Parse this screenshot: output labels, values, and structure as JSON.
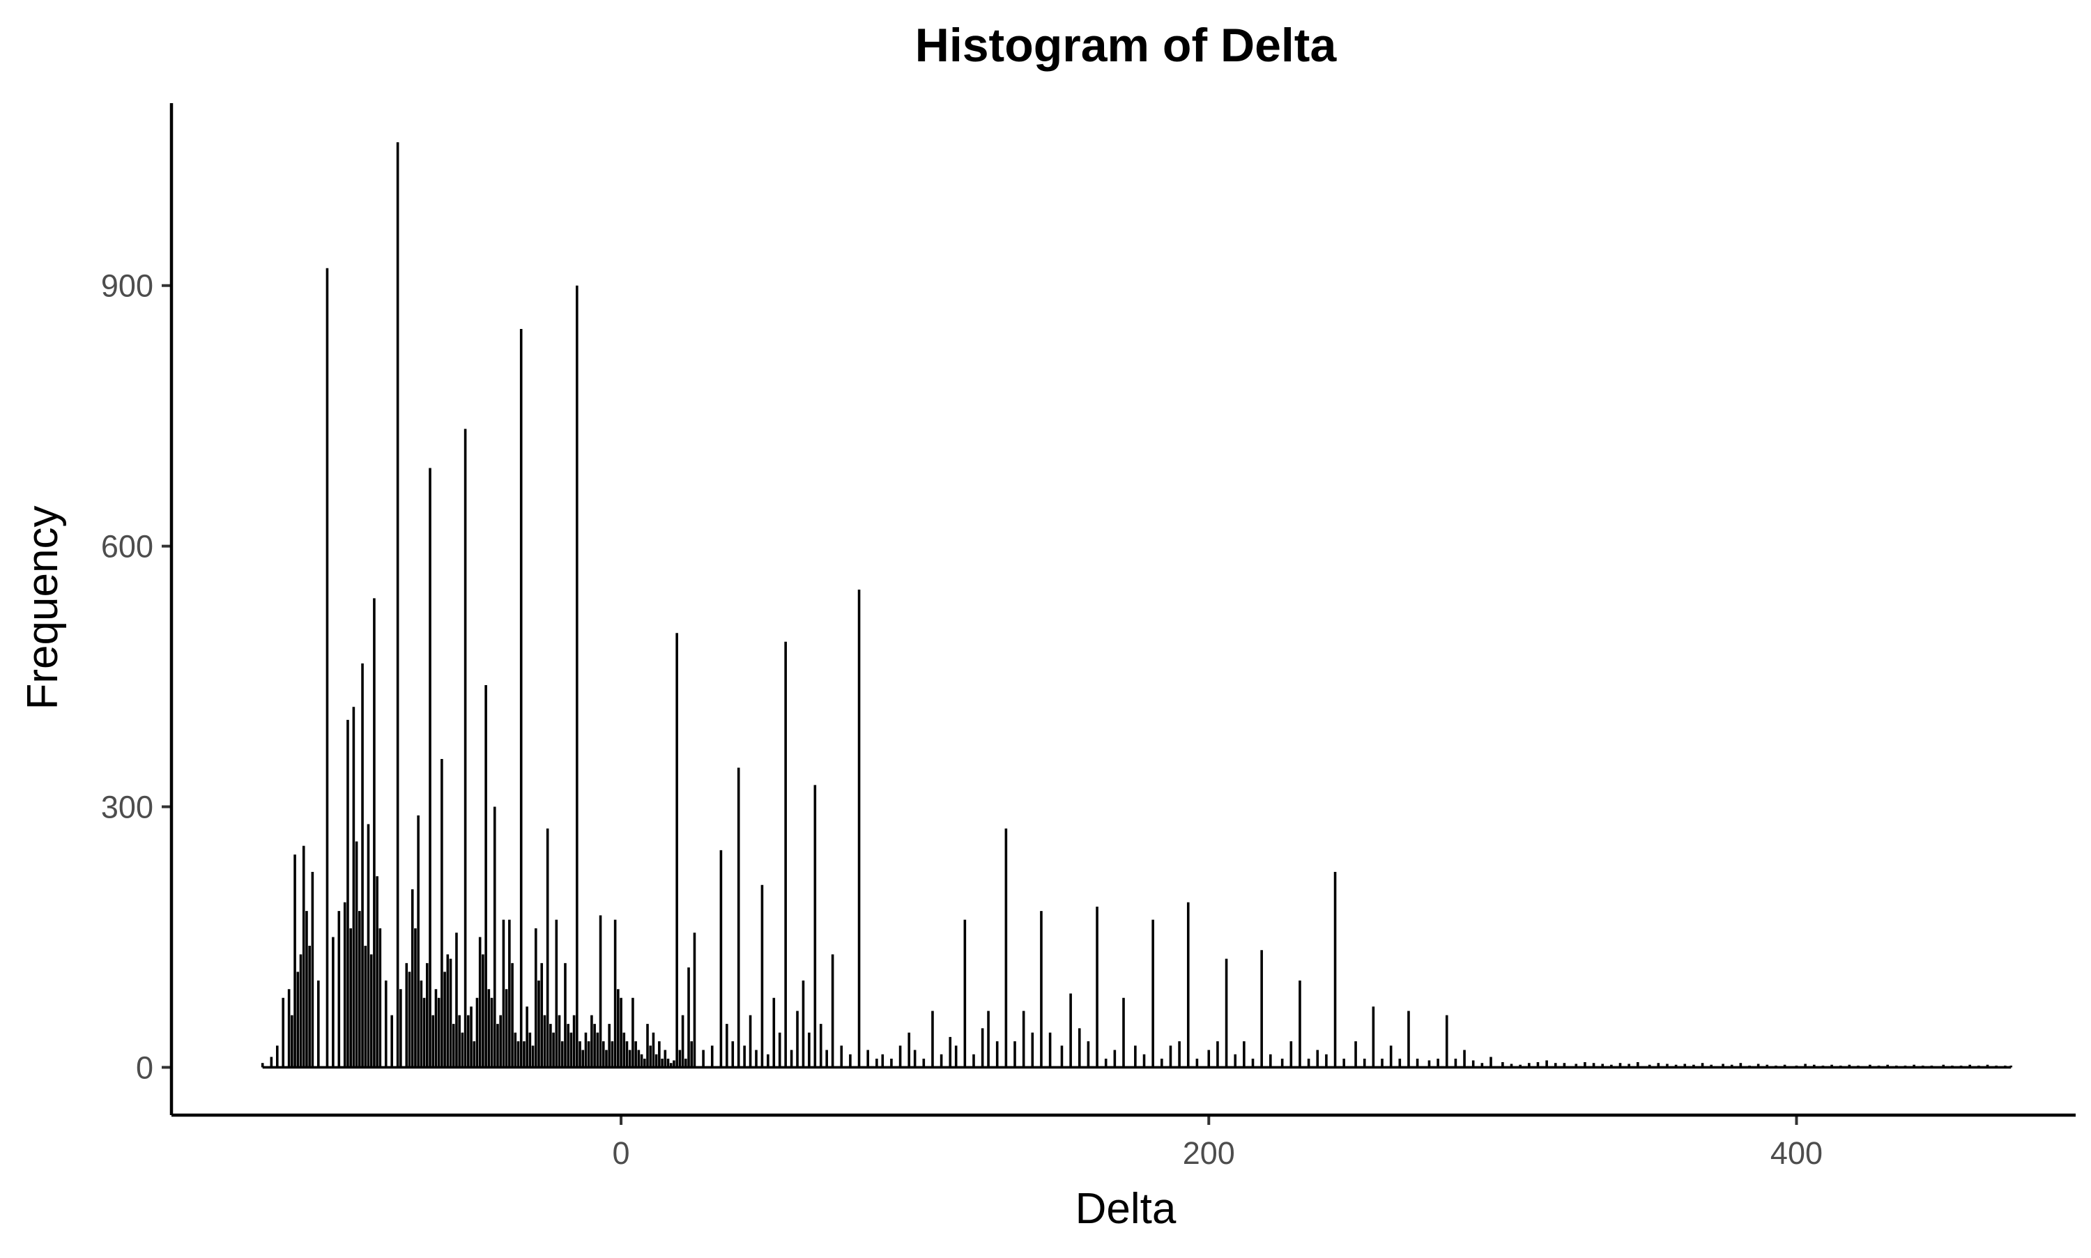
{
  "chart_data": {
    "type": "histogram",
    "title": "Histogram of Delta",
    "xlabel": "Delta",
    "ylabel": "Frequency",
    "xlim": [
      -153,
      495
    ],
    "ylim": [
      -55,
      1110
    ],
    "x_ticks": [
      0,
      200,
      400
    ],
    "y_ticks": [
      0,
      300,
      600,
      900
    ],
    "grid": false,
    "legend": "none",
    "bar_color": "#000000",
    "background": "#ffffff",
    "bins": {
      "x": [
        -122,
        -119,
        -117,
        -115,
        -113,
        -112,
        -111,
        -110,
        -109,
        -108,
        -107,
        -106,
        -105,
        -103,
        -100,
        -98,
        -96,
        -94,
        -93,
        -92,
        -91,
        -90,
        -89,
        -88,
        -87,
        -86,
        -85,
        -84,
        -83,
        -82,
        -80,
        -78,
        -76,
        -75,
        -73,
        -72,
        -71,
        -70,
        -69,
        -68,
        -67,
        -66,
        -65,
        -64,
        -63,
        -62,
        -61,
        -60,
        -59,
        -58,
        -57,
        -56,
        -55,
        -54,
        -53,
        -52,
        -51,
        -50,
        -49,
        -48,
        -47,
        -46,
        -45,
        -44,
        -43,
        -42,
        -41,
        -40,
        -39,
        -38,
        -37,
        -36,
        -35,
        -34,
        -33,
        -32,
        -31,
        -30,
        -29,
        -28,
        -27,
        -26,
        -25,
        -24,
        -23,
        -22,
        -21,
        -20,
        -19,
        -18,
        -17,
        -16,
        -15,
        -14,
        -13,
        -12,
        -11,
        -10,
        -9,
        -8,
        -7,
        -6,
        -5,
        -4,
        -3,
        -2,
        -1,
        0,
        1,
        2,
        3,
        4,
        5,
        6,
        7,
        8,
        9,
        10,
        11,
        12,
        13,
        14,
        15,
        16,
        17,
        18,
        19,
        20,
        21,
        22,
        23,
        24,
        25,
        28,
        31,
        34,
        36,
        38,
        40,
        42,
        44,
        46,
        48,
        50,
        52,
        54,
        56,
        58,
        60,
        62,
        64,
        66,
        68,
        70,
        72,
        75,
        78,
        81,
        84,
        87,
        89,
        92,
        95,
        98,
        100,
        103,
        106,
        109,
        112,
        114,
        117,
        120,
        123,
        125,
        128,
        131,
        134,
        137,
        140,
        143,
        146,
        150,
        153,
        156,
        159,
        162,
        165,
        168,
        171,
        175,
        178,
        181,
        184,
        187,
        190,
        193,
        196,
        200,
        203,
        206,
        209,
        212,
        215,
        218,
        221,
        225,
        228,
        231,
        234,
        237,
        240,
        243,
        246,
        250,
        253,
        256,
        259,
        262,
        265,
        268,
        271,
        275,
        278,
        281,
        284,
        287,
        290,
        293,
        296,
        300,
        303,
        306,
        309,
        312,
        315,
        318,
        321,
        325,
        328,
        331,
        334,
        337,
        340,
        343,
        346,
        350,
        353,
        356,
        359,
        362,
        365,
        368,
        371,
        375,
        378,
        381,
        384,
        387,
        390,
        393,
        396,
        400,
        403,
        406,
        409,
        412,
        415,
        418,
        421,
        425,
        428,
        431,
        434,
        437,
        440,
        443,
        446,
        450,
        453,
        456,
        459,
        462,
        465,
        468,
        471,
        473
      ],
      "counts": [
        5,
        12,
        25,
        80,
        90,
        60,
        245,
        110,
        130,
        255,
        180,
        140,
        225,
        100,
        920,
        150,
        180,
        190,
        400,
        160,
        415,
        260,
        180,
        465,
        140,
        280,
        130,
        540,
        220,
        160,
        100,
        60,
        1065,
        90,
        120,
        110,
        205,
        160,
        290,
        100,
        80,
        120,
        690,
        60,
        90,
        80,
        355,
        110,
        130,
        125,
        50,
        155,
        60,
        40,
        735,
        60,
        70,
        30,
        80,
        150,
        130,
        440,
        90,
        80,
        300,
        50,
        60,
        170,
        90,
        170,
        120,
        40,
        30,
        850,
        30,
        70,
        40,
        25,
        160,
        100,
        120,
        60,
        275,
        50,
        40,
        170,
        60,
        30,
        120,
        50,
        40,
        60,
        900,
        30,
        20,
        40,
        30,
        60,
        50,
        40,
        175,
        30,
        20,
        50,
        30,
        170,
        90,
        80,
        40,
        30,
        20,
        80,
        30,
        20,
        15,
        10,
        50,
        25,
        40,
        15,
        30,
        10,
        20,
        10,
        5,
        8,
        500,
        20,
        60,
        10,
        115,
        30,
        155,
        20,
        25,
        250,
        50,
        30,
        345,
        25,
        60,
        20,
        210,
        15,
        80,
        40,
        490,
        20,
        65,
        100,
        40,
        325,
        50,
        20,
        130,
        25,
        15,
        550,
        20,
        10,
        15,
        10,
        25,
        40,
        20,
        10,
        65,
        15,
        35,
        25,
        170,
        15,
        45,
        65,
        30,
        275,
        30,
        65,
        40,
        180,
        40,
        25,
        85,
        45,
        30,
        185,
        10,
        20,
        80,
        25,
        15,
        170,
        10,
        25,
        30,
        190,
        10,
        20,
        30,
        125,
        15,
        30,
        10,
        135,
        15,
        10,
        30,
        100,
        10,
        20,
        15,
        225,
        10,
        30,
        10,
        70,
        10,
        25,
        10,
        65,
        10,
        8,
        10,
        60,
        10,
        20,
        8,
        5,
        12,
        6,
        4,
        3,
        5,
        6,
        8,
        5,
        5,
        4,
        6,
        5,
        4,
        3,
        5,
        4,
        6,
        3,
        5,
        4,
        3,
        4,
        3,
        5,
        3,
        4,
        3,
        5,
        2,
        4,
        3,
        2,
        3,
        2,
        4,
        3,
        2,
        3,
        2,
        3,
        2,
        3,
        2,
        3,
        2,
        2,
        3,
        2,
        2,
        3,
        2,
        2,
        3,
        2,
        3,
        2,
        2,
        2
      ]
    }
  }
}
